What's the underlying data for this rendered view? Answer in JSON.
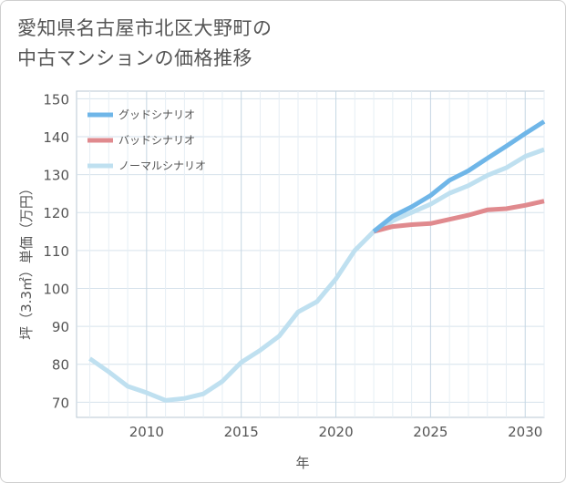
{
  "title": {
    "line1": "愛知県名古屋市北区大野町の",
    "line2": "中古マンションの価格推移"
  },
  "chart_data": {
    "type": "line",
    "xlabel": "年",
    "ylabel": "坪（3.3㎡）単価（万円）",
    "xlim": [
      2006.3,
      2031
    ],
    "ylim": [
      66,
      152
    ],
    "x_ticks": [
      2010,
      2015,
      2020,
      2025,
      2030
    ],
    "y_ticks": [
      70,
      80,
      90,
      100,
      110,
      120,
      130,
      140,
      150
    ],
    "grid": true,
    "legend_position": "top-left",
    "series": [
      {
        "name": "グッドシナリオ",
        "color": "#6fb6e8",
        "x": [
          2022,
          2023,
          2024,
          2025,
          2026,
          2027,
          2028,
          2029,
          2030,
          2031
        ],
        "y": [
          115,
          119,
          121.5,
          124.5,
          128.5,
          131,
          134.3,
          137.5,
          140.8,
          144
        ]
      },
      {
        "name": "バッドシナリオ",
        "color": "#e08a8e",
        "x": [
          2022,
          2023,
          2024,
          2025,
          2026,
          2027,
          2028,
          2029,
          2030,
          2031
        ],
        "y": [
          115,
          116.3,
          116.8,
          117.1,
          118.2,
          119.3,
          120.7,
          121,
          121.9,
          123
        ]
      },
      {
        "name": "ノーマルシナリオ",
        "color": "#bfe0f0",
        "x": [
          2007,
          2008,
          2009,
          2010,
          2011,
          2012,
          2013,
          2014,
          2015,
          2016,
          2017,
          2018,
          2019,
          2020,
          2021,
          2022,
          2023,
          2024,
          2025,
          2026,
          2027,
          2028,
          2029,
          2030,
          2031
        ],
        "y": [
          81.5,
          78,
          74.2,
          72.5,
          70.5,
          71,
          72.2,
          75.5,
          80.5,
          83.7,
          87.4,
          93.8,
          96.5,
          102.5,
          110,
          115,
          117.8,
          120,
          122.2,
          125.1,
          127.1,
          129.8,
          131.8,
          134.8,
          136.6
        ]
      }
    ]
  }
}
